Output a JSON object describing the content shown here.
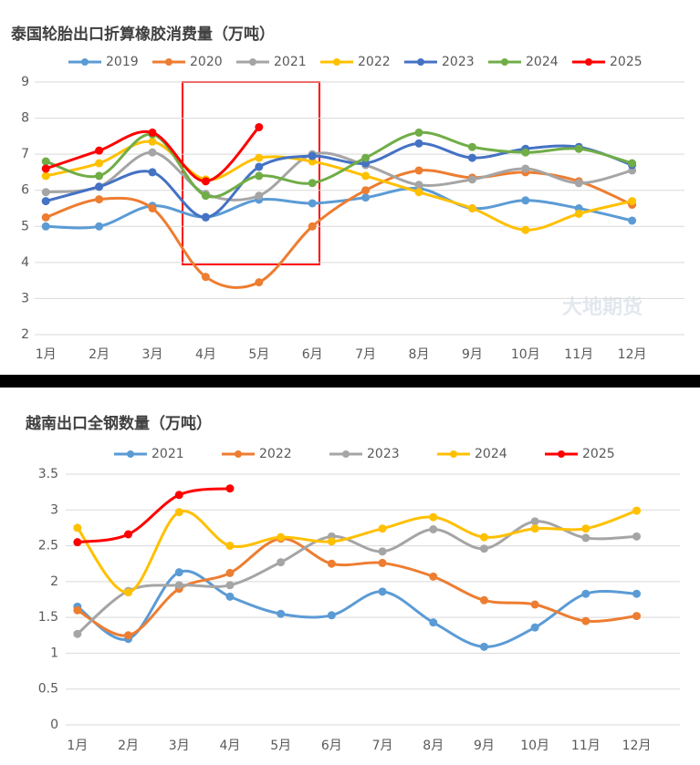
{
  "chart_data": [
    {
      "type": "line",
      "title": "泰国轮胎出口折算橡胶消费量（万吨）",
      "watermark": "大地期货",
      "categories": [
        "1月",
        "2月",
        "3月",
        "4月",
        "5月",
        "6月",
        "7月",
        "8月",
        "9月",
        "10月",
        "11月",
        "12月"
      ],
      "ylim": [
        2,
        9
      ],
      "yticks": [
        2,
        3,
        4,
        5,
        6,
        7,
        8,
        9
      ],
      "grid": true,
      "smooth": true,
      "legend": "top",
      "series": [
        {
          "name": "2019",
          "color": "#5b9bd5",
          "values": [
            5.0,
            5.0,
            5.57,
            5.26,
            5.74,
            5.64,
            5.8,
            6.05,
            5.5,
            5.72,
            5.5,
            5.16
          ]
        },
        {
          "name": "2020",
          "color": "#ed7d31",
          "values": [
            5.25,
            5.75,
            5.5,
            3.6,
            3.45,
            5.0,
            6.0,
            6.55,
            6.35,
            6.5,
            6.25,
            5.6
          ]
        },
        {
          "name": "2021",
          "color": "#a5a5a5",
          "values": [
            5.95,
            6.1,
            7.05,
            5.9,
            5.85,
            7.0,
            6.7,
            6.15,
            6.3,
            6.6,
            6.2,
            6.55
          ]
        },
        {
          "name": "2022",
          "color": "#ffc000",
          "values": [
            6.4,
            6.75,
            7.35,
            6.3,
            6.9,
            6.8,
            6.4,
            5.95,
            5.5,
            4.9,
            5.35,
            5.7
          ]
        },
        {
          "name": "2023",
          "color": "#4472c4",
          "values": [
            5.7,
            6.1,
            6.5,
            5.25,
            6.65,
            6.95,
            6.75,
            7.3,
            6.9,
            7.15,
            7.2,
            6.7
          ]
        },
        {
          "name": "2024",
          "color": "#70ad47",
          "values": [
            6.8,
            6.4,
            7.55,
            5.85,
            6.4,
            6.2,
            6.9,
            7.6,
            7.2,
            7.05,
            7.15,
            6.75
          ]
        },
        {
          "name": "2025",
          "color": "#ff0000",
          "values": [
            6.6,
            7.1,
            7.6,
            6.25,
            7.75,
            null,
            null,
            null,
            null,
            null,
            null,
            null
          ]
        }
      ]
    },
    {
      "type": "line",
      "title": "越南出口全钢数量（万吨）",
      "categories": [
        "1月",
        "2月",
        "3月",
        "4月",
        "5月",
        "6月",
        "7月",
        "8月",
        "9月",
        "10月",
        "11月",
        "12月"
      ],
      "ylim": [
        0,
        3.5
      ],
      "yticks": [
        0,
        0.5,
        1,
        1.5,
        2,
        2.5,
        3,
        3.5
      ],
      "grid": true,
      "smooth": true,
      "legend": "top",
      "series": [
        {
          "name": "2021",
          "color": "#5b9bd5",
          "values": [
            1.65,
            1.2,
            2.13,
            1.79,
            1.55,
            1.53,
            1.86,
            1.43,
            1.09,
            1.36,
            1.83,
            1.83
          ]
        },
        {
          "name": "2022",
          "color": "#ed7d31",
          "values": [
            1.6,
            1.25,
            1.9,
            2.12,
            2.6,
            2.25,
            2.26,
            2.07,
            1.74,
            1.68,
            1.45,
            1.52
          ]
        },
        {
          "name": "2023",
          "color": "#a5a5a5",
          "values": [
            1.27,
            1.87,
            1.95,
            1.95,
            2.27,
            2.63,
            2.42,
            2.73,
            2.46,
            2.84,
            2.61,
            2.63
          ]
        },
        {
          "name": "2024",
          "color": "#ffc000",
          "values": [
            2.75,
            1.85,
            2.97,
            2.5,
            2.62,
            2.56,
            2.74,
            2.9,
            2.62,
            2.74,
            2.74,
            2.99
          ]
        },
        {
          "name": "2025",
          "color": "#ff0000",
          "values": [
            2.55,
            2.66,
            3.21,
            3.3,
            null,
            null,
            null,
            null,
            null,
            null,
            null,
            null
          ]
        }
      ]
    }
  ]
}
